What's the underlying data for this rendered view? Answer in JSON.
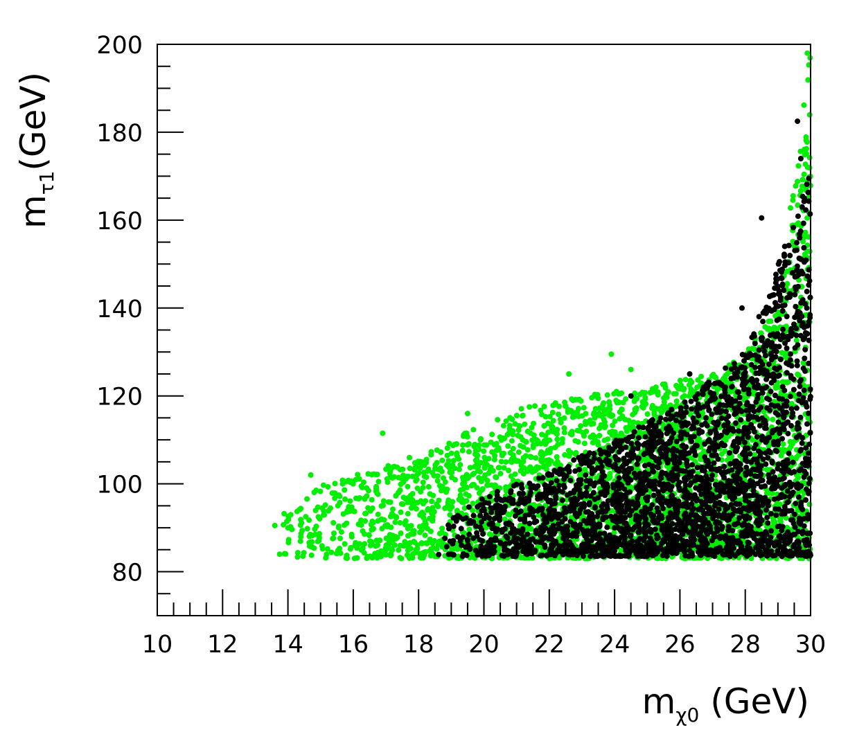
{
  "chart_data": {
    "type": "scatter",
    "title": "",
    "xlabel": {
      "main": "m",
      "sub": "χ0",
      "unit": " (GeV)"
    },
    "ylabel": {
      "main": "m",
      "sub": "τ1",
      "unit": "(GeV)"
    },
    "xlim": [
      10,
      30
    ],
    "ylim": [
      70,
      200
    ],
    "x_major_ticks": [
      10,
      12,
      14,
      16,
      18,
      20,
      22,
      24,
      26,
      28,
      30
    ],
    "y_major_ticks": [
      80,
      100,
      120,
      140,
      160,
      180,
      200
    ],
    "x_minor_step": 0.5,
    "y_minor_step": 5,
    "grid": false,
    "legend": "none",
    "series": [
      {
        "color": "#00ee00",
        "point_clouds": [
          {
            "x_range": [
              13.5,
              30
            ],
            "y_floor": 83,
            "y_ceiling_at_x": [
              [
                13.5,
                92
              ],
              [
                15,
                100
              ],
              [
                17,
                104
              ],
              [
                19,
                110
              ],
              [
                21,
                117
              ],
              [
                23,
                120
              ],
              [
                25,
                122
              ],
              [
                27,
                125
              ],
              [
                28,
                130
              ],
              [
                29,
                140
              ],
              [
                29.5,
                170
              ],
              [
                30,
                200
              ]
            ]
          }
        ],
        "notable_points": [
          [
            13.6,
            90.5
          ],
          [
            14.7,
            102
          ],
          [
            16.9,
            111.5
          ],
          [
            19.5,
            116
          ],
          [
            22.6,
            125
          ],
          [
            23.9,
            129.5
          ],
          [
            24.5,
            126
          ],
          [
            29.9,
            198
          ]
        ]
      },
      {
        "color": "#000000",
        "point_clouds": [
          {
            "x_range": [
              18.5,
              30
            ],
            "y_floor": 83.5,
            "y_ceiling_at_x": [
              [
                18.5,
                90
              ],
              [
                20,
                97
              ],
              [
                22,
                103
              ],
              [
                24,
                110
              ],
              [
                26,
                118
              ],
              [
                27,
                124
              ],
              [
                28,
                130
              ],
              [
                29,
                150
              ],
              [
                29.5,
                160
              ],
              [
                30,
                172
              ]
            ]
          }
        ],
        "notable_points": [
          [
            19.0,
            84
          ],
          [
            24.5,
            120
          ],
          [
            26.3,
            125
          ],
          [
            28.5,
            160.5
          ],
          [
            29.6,
            182.5
          ],
          [
            29.7,
            174
          ],
          [
            27.9,
            140
          ]
        ]
      }
    ]
  }
}
